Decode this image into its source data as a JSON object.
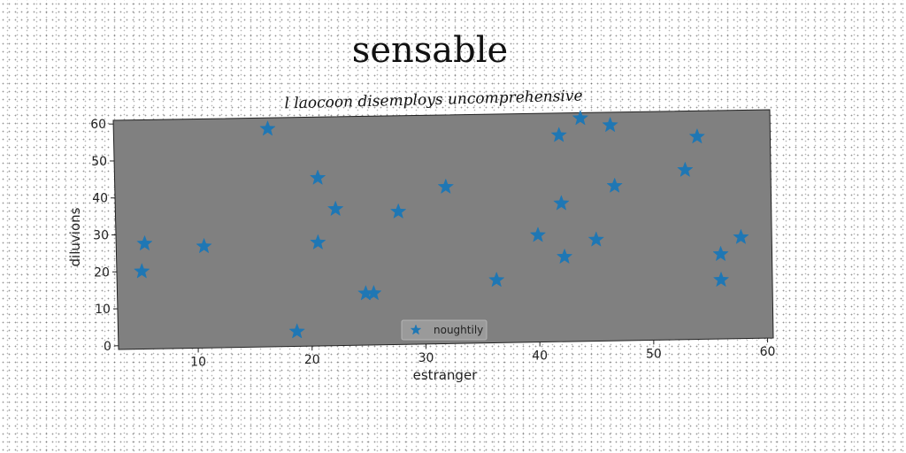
{
  "chart_data": {
    "type": "scatter",
    "title": "sensable",
    "subtitle": "l laocoon disemploys uncomprehensive",
    "xlabel": "estranger",
    "ylabel": "diluvions",
    "xlim": [
      3,
      60.5
    ],
    "ylim": [
      -1,
      61
    ],
    "xticks": [
      10,
      20,
      30,
      40,
      50,
      60
    ],
    "yticks": [
      0,
      10,
      20,
      30,
      40,
      50,
      60
    ],
    "grid": false,
    "legend_position": "bottom-center",
    "background_color": "#808080",
    "series": [
      {
        "name": "noughtily",
        "color": "#1f77b4",
        "marker": "star",
        "points": [
          [
            5.2,
            20
          ],
          [
            5.5,
            27.5
          ],
          [
            10.7,
            26.5
          ],
          [
            16.5,
            58
          ],
          [
            18.7,
            3
          ],
          [
            20.7,
            27
          ],
          [
            20.8,
            44.5
          ],
          [
            22.3,
            36
          ],
          [
            24.8,
            13
          ],
          [
            25.5,
            13
          ],
          [
            27.8,
            35
          ],
          [
            32,
            41.5
          ],
          [
            36.3,
            16
          ],
          [
            40,
            28
          ],
          [
            42,
            55
          ],
          [
            42.1,
            36.5
          ],
          [
            42.3,
            22
          ],
          [
            43.9,
            59.5
          ],
          [
            45.1,
            26.5
          ],
          [
            46.5,
            57.5
          ],
          [
            46.8,
            41
          ],
          [
            53,
            45
          ],
          [
            54.1,
            54
          ],
          [
            56,
            22
          ],
          [
            56,
            15
          ],
          [
            57.8,
            26.5
          ]
        ]
      }
    ]
  }
}
